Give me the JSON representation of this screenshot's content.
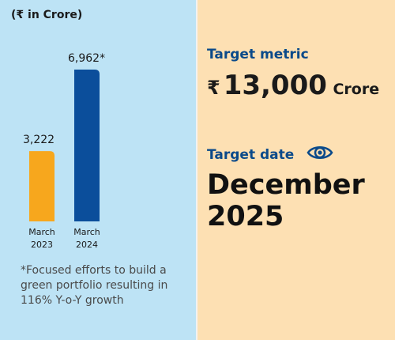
{
  "chart_data": {
    "type": "bar",
    "unit_label": "(₹ in Crore)",
    "categories": [
      [
        "March",
        "2023"
      ],
      [
        "March",
        "2024"
      ]
    ],
    "values": [
      3222,
      6962
    ],
    "value_labels": [
      "3,222",
      "6,962*"
    ],
    "colors": [
      "#f7a71d",
      "#0b4e9b"
    ],
    "footnote": "*Focused efforts to build a green portfolio resulting in 116% Y-o-Y growth"
  },
  "target_metric": {
    "label": "Target metric",
    "currency": "₹",
    "value": "13,000",
    "unit": "Crore"
  },
  "target_date": {
    "label": "Target date",
    "icon": "eye-icon",
    "value": "December 2025"
  }
}
